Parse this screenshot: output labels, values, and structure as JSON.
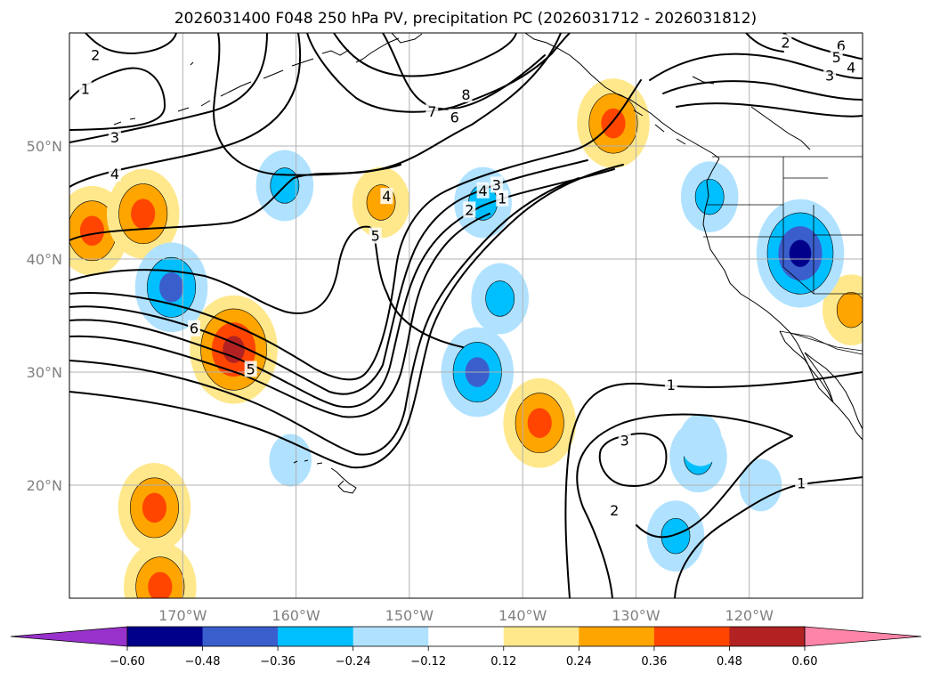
{
  "title": "2026031400 F048 250 hPa PV, precipitation PC (2026031712 - 2026031812)",
  "chart_data": {
    "type": "map",
    "title": "2026031400 F048 250 hPa PV, precipitation PC (2026031712 - 2026031812)",
    "projection": "equirectangular",
    "lon_range": [
      -180,
      -110
    ],
    "lat_range": [
      10,
      60
    ],
    "grid": true,
    "lon_ticks": [
      {
        "value": -170,
        "label": "170°W"
      },
      {
        "value": -160,
        "label": "160°W"
      },
      {
        "value": -150,
        "label": "150°W"
      },
      {
        "value": -140,
        "label": "140°W"
      },
      {
        "value": -130,
        "label": "130°W"
      },
      {
        "value": -120,
        "label": "120°W"
      }
    ],
    "lat_ticks": [
      {
        "value": 20,
        "label": "20°N"
      },
      {
        "value": 30,
        "label": "30°N"
      },
      {
        "value": 40,
        "label": "40°N"
      },
      {
        "value": 50,
        "label": "50°N"
      }
    ],
    "colorbar": {
      "levels": [
        -0.6,
        -0.48,
        -0.36,
        -0.24,
        -0.12,
        0.12,
        0.24,
        0.36,
        0.48,
        0.6
      ],
      "tick_labels": [
        "−0.60",
        "−0.48",
        "−0.36",
        "−0.24",
        "−0.12",
        "0.12",
        "0.24",
        "0.36",
        "0.48",
        "0.60"
      ],
      "colors": [
        "#9932CC",
        "#00008B",
        "#3A5FCD",
        "#00BFFF",
        "#B0E2FF",
        "#FFFFFF",
        "#FFE88C",
        "#FFA500",
        "#FF4500",
        "#B22222",
        "#FF85A8"
      ],
      "extend": "both"
    },
    "pv_contour_labels": [
      {
        "lon": -177.7,
        "lat": 58,
        "label": "2"
      },
      {
        "lon": -178.6,
        "lat": 55,
        "label": "1"
      },
      {
        "lon": -176,
        "lat": 50.7,
        "label": "3"
      },
      {
        "lon": -176,
        "lat": 47.5,
        "label": "4"
      },
      {
        "lon": -153,
        "lat": 42,
        "label": "5"
      },
      {
        "lon": -145,
        "lat": 54.5,
        "label": "8"
      },
      {
        "lon": -148,
        "lat": 53,
        "label": "7"
      },
      {
        "lon": -146,
        "lat": 52.5,
        "label": "6"
      },
      {
        "lon": -152,
        "lat": 45.5,
        "label": "4"
      },
      {
        "lon": -143.5,
        "lat": 46,
        "label": "4"
      },
      {
        "lon": -142.3,
        "lat": 46.5,
        "label": "3"
      },
      {
        "lon": -144.7,
        "lat": 44.3,
        "label": "2"
      },
      {
        "lon": -141.8,
        "lat": 45.3,
        "label": "1"
      },
      {
        "lon": -169,
        "lat": 33.8,
        "label": "6"
      },
      {
        "lon": -164,
        "lat": 30.2,
        "label": "5"
      },
      {
        "lon": -126.9,
        "lat": 28.8,
        "label": "1"
      },
      {
        "lon": -131,
        "lat": 23.9,
        "label": "3"
      },
      {
        "lon": -131.9,
        "lat": 17.7,
        "label": "2"
      },
      {
        "lon": -115.4,
        "lat": 20.1,
        "label": "1"
      },
      {
        "lon": -111.9,
        "lat": 58.8,
        "label": "6"
      },
      {
        "lon": -112.3,
        "lat": 57.8,
        "label": "5"
      },
      {
        "lon": -111,
        "lat": 56.9,
        "label": "4"
      },
      {
        "lon": -112.9,
        "lat": 56.2,
        "label": "3"
      },
      {
        "lon": -116.8,
        "lat": 59.1,
        "label": "2"
      }
    ],
    "precip_pc_regions": [
      {
        "lon": -178,
        "lat": 42.5,
        "value": 0.36
      },
      {
        "lon": -173.5,
        "lat": 44,
        "value": 0.36
      },
      {
        "lon": -165.5,
        "lat": 32,
        "value": 0.48
      },
      {
        "lon": -172.5,
        "lat": 18,
        "value": 0.36
      },
      {
        "lon": -172,
        "lat": 11,
        "value": 0.36
      },
      {
        "lon": -152.5,
        "lat": 45,
        "value": 0.24
      },
      {
        "lon": -132,
        "lat": 52,
        "value": 0.36
      },
      {
        "lon": -138.5,
        "lat": 25.5,
        "value": 0.36
      },
      {
        "lon": -111,
        "lat": 35.5,
        "value": 0.24
      },
      {
        "lon": -171,
        "lat": 37.5,
        "value": -0.36
      },
      {
        "lon": -161,
        "lat": 46.5,
        "value": -0.24
      },
      {
        "lon": -144,
        "lat": 30,
        "value": -0.36
      },
      {
        "lon": -142,
        "lat": 36.5,
        "value": -0.24
      },
      {
        "lon": -143.5,
        "lat": 45,
        "value": -0.24
      },
      {
        "lon": -123.5,
        "lat": 45.5,
        "value": -0.24
      },
      {
        "lon": -115.5,
        "lat": 40.5,
        "value": -0.48
      },
      {
        "lon": -126.5,
        "lat": 15.5,
        "value": -0.24
      },
      {
        "lon": -124.5,
        "lat": 22.5,
        "value": -0.24
      },
      {
        "lon": -119,
        "lat": 20,
        "value": -0.12
      },
      {
        "lon": -160.5,
        "lat": 22.2,
        "value": -0.12
      },
      {
        "lon": -124.3,
        "lat": 24,
        "value": -0.12
      }
    ]
  }
}
